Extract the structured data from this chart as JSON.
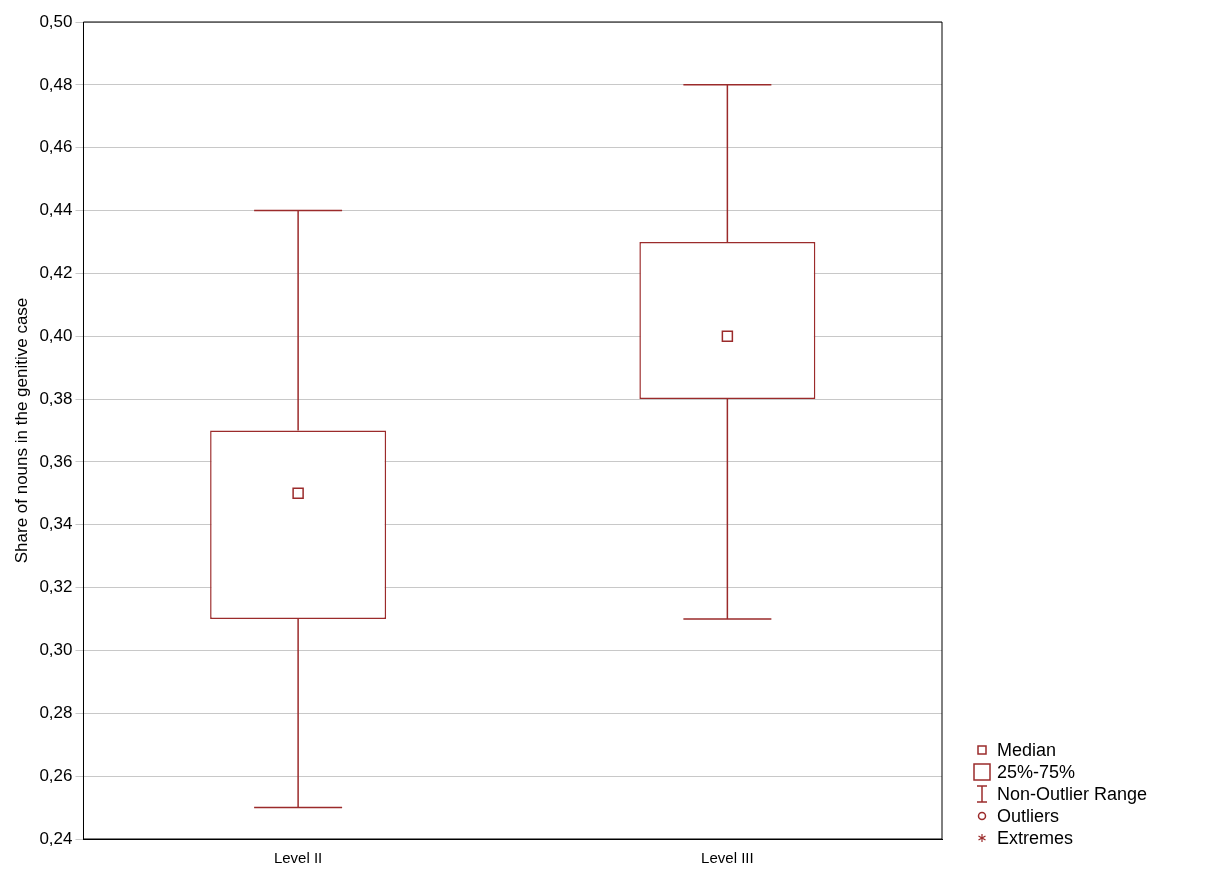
{
  "chart_data": {
    "type": "box",
    "ylabel": "Share of nouns in the genitive case",
    "categories": [
      "Level II",
      "Level III"
    ],
    "series": [
      {
        "color": "#9b2b2b",
        "boxes": [
          {
            "low": 0.25,
            "q1": 0.31,
            "median": 0.35,
            "q3": 0.37,
            "high": 0.44
          },
          {
            "low": 0.31,
            "q1": 0.38,
            "median": 0.4,
            "q3": 0.43,
            "high": 0.48
          }
        ]
      }
    ],
    "ylim": [
      0.24,
      0.5
    ],
    "yticks": [
      {
        "value": 0.24,
        "label": "0,24"
      },
      {
        "value": 0.26,
        "label": "0,26"
      },
      {
        "value": 0.28,
        "label": "0,28"
      },
      {
        "value": 0.3,
        "label": "0,30"
      },
      {
        "value": 0.32,
        "label": "0,32"
      },
      {
        "value": 0.34,
        "label": "0,34"
      },
      {
        "value": 0.36,
        "label": "0,36"
      },
      {
        "value": 0.38,
        "label": "0,38"
      },
      {
        "value": 0.4,
        "label": "0,40"
      },
      {
        "value": 0.42,
        "label": "0,42"
      },
      {
        "value": 0.44,
        "label": "0,44"
      },
      {
        "value": 0.46,
        "label": "0,46"
      },
      {
        "value": 0.48,
        "label": "0,48"
      },
      {
        "value": 0.5,
        "label": "0,50"
      }
    ],
    "grid": "y",
    "annotations": [
      "Median",
      "25%-75%",
      "Non-Outlier Range",
      "Outliers",
      "Extremes"
    ]
  }
}
